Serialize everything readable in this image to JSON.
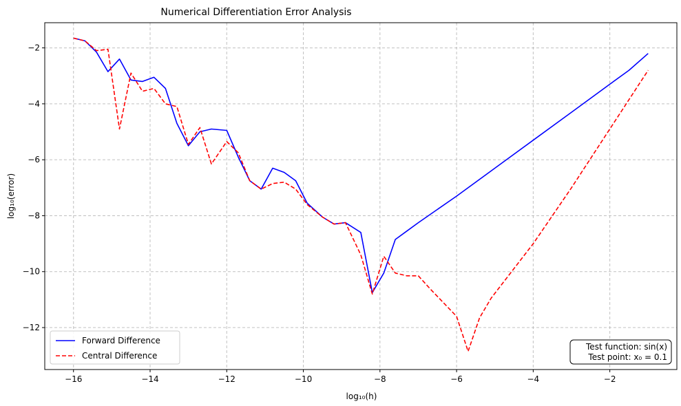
{
  "chart_data": {
    "type": "line",
    "title": "Numerical Differentiation Error Analysis",
    "xlabel": "log₁₀(h)",
    "ylabel": "log₁₀(error)",
    "xlim": [
      -16.75,
      -0.25
    ],
    "ylim": [
      -13.5,
      -1.1
    ],
    "xticks": [
      -16,
      -14,
      -12,
      -10,
      -8,
      -6,
      -4,
      -2
    ],
    "yticks": [
      -12,
      -10,
      -8,
      -6,
      -4,
      -2
    ],
    "grid": true,
    "legend_position": "lower-left",
    "series": [
      {
        "name": "Forward Difference",
        "color": "#0000ff",
        "dash": "solid",
        "x": [
          -16.0,
          -15.7,
          -15.4,
          -15.1,
          -14.8,
          -14.5,
          -14.2,
          -13.9,
          -13.6,
          -13.3,
          -13.0,
          -12.7,
          -12.4,
          -12.0,
          -11.7,
          -11.4,
          -11.1,
          -10.8,
          -10.5,
          -10.2,
          -9.9,
          -9.5,
          -9.2,
          -8.9,
          -8.5,
          -8.2,
          -7.9,
          -7.6,
          -7.3,
          -7.0,
          -6.0,
          -5.0,
          -4.0,
          -3.0,
          -2.0,
          -1.5,
          -1.0
        ],
        "values": [
          -1.65,
          -1.75,
          -2.15,
          -2.85,
          -2.4,
          -3.15,
          -3.2,
          -3.05,
          -3.45,
          -4.7,
          -5.5,
          -5.0,
          -4.9,
          -4.95,
          -5.9,
          -6.75,
          -7.05,
          -6.3,
          -6.45,
          -6.75,
          -7.55,
          -8.05,
          -8.3,
          -8.25,
          -8.6,
          -10.75,
          -10.05,
          -8.85,
          -8.55,
          -8.25,
          -7.3,
          -6.3,
          -5.3,
          -4.3,
          -3.3,
          -2.8,
          -2.2
        ]
      },
      {
        "name": "Central Difference",
        "color": "#ff0000",
        "dash": "dashed",
        "x": [
          -16.0,
          -15.7,
          -15.4,
          -15.1,
          -14.8,
          -14.5,
          -14.2,
          -13.9,
          -13.6,
          -13.3,
          -13.0,
          -12.7,
          -12.4,
          -12.0,
          -11.7,
          -11.4,
          -11.1,
          -10.8,
          -10.5,
          -10.2,
          -9.9,
          -9.5,
          -9.2,
          -8.9,
          -8.5,
          -8.2,
          -7.9,
          -7.6,
          -7.3,
          -7.0,
          -6.7,
          -6.0,
          -5.7,
          -5.4,
          -5.1,
          -4.0,
          -3.0,
          -2.0,
          -1.0
        ],
        "values": [
          -1.65,
          -1.75,
          -2.1,
          -2.05,
          -4.9,
          -2.9,
          -3.55,
          -3.45,
          -4.0,
          -4.1,
          -5.45,
          -4.85,
          -6.15,
          -5.35,
          -5.75,
          -6.75,
          -7.05,
          -6.85,
          -6.8,
          -7.05,
          -7.6,
          -8.05,
          -8.3,
          -8.25,
          -9.4,
          -10.8,
          -9.45,
          -10.05,
          -10.15,
          -10.15,
          -10.6,
          -11.6,
          -12.85,
          -11.65,
          -10.95,
          -9.0,
          -7.0,
          -4.9,
          -2.8
        ]
      }
    ],
    "annotation": {
      "lines": [
        "Test function: sin(x)",
        "Test point: x₀ = 0.1"
      ],
      "position": "lower-right"
    }
  }
}
